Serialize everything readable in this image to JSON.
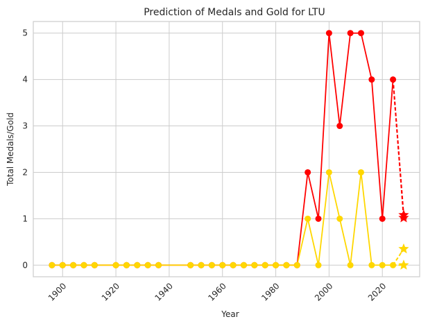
{
  "chart_data": {
    "type": "line",
    "title": "Prediction of Medals and Gold for LTU",
    "xlabel": "Year",
    "ylabel": "Total Medals/Gold",
    "xlim": [
      1889,
      2034
    ],
    "ylim": [
      -0.25,
      5.25
    ],
    "xticks": [
      1900,
      1920,
      1940,
      1960,
      1980,
      2000,
      2020
    ],
    "yticks": [
      0,
      1,
      2,
      3,
      4,
      5
    ],
    "grid": true,
    "series": [
      {
        "color": "#ff0000",
        "marker": "circle",
        "x": [
          1896,
          1900,
          1904,
          1908,
          1912,
          1920,
          1924,
          1928,
          1932,
          1936,
          1948,
          1952,
          1956,
          1960,
          1964,
          1968,
          1972,
          1976,
          1980,
          1984,
          1988,
          1992,
          1996,
          2000,
          2004,
          2008,
          2012,
          2016,
          2020,
          2024
        ],
        "y": [
          0,
          0,
          0,
          0,
          0,
          0,
          0,
          0,
          0,
          0,
          0,
          0,
          0,
          0,
          0,
          0,
          0,
          0,
          0,
          0,
          0,
          2,
          1,
          5,
          3,
          5,
          5,
          4,
          1,
          4
        ]
      },
      {
        "color": "#ffd700",
        "marker": "circle",
        "x": [
          1896,
          1900,
          1904,
          1908,
          1912,
          1920,
          1924,
          1928,
          1932,
          1936,
          1948,
          1952,
          1956,
          1960,
          1964,
          1968,
          1972,
          1976,
          1980,
          1984,
          1988,
          1992,
          1996,
          2000,
          2004,
          2008,
          2012,
          2016,
          2020,
          2024
        ],
        "y": [
          0,
          0,
          0,
          0,
          0,
          0,
          0,
          0,
          0,
          0,
          0,
          0,
          0,
          0,
          0,
          0,
          0,
          0,
          0,
          0,
          0,
          1,
          0,
          2,
          1,
          0,
          2,
          0,
          0,
          0
        ]
      }
    ],
    "predictions": [
      {
        "color": "#ff0000",
        "marker": "star",
        "from": [
          2024,
          4
        ],
        "points": [
          [
            2028,
            1.08
          ],
          [
            2028,
            1.02
          ]
        ]
      },
      {
        "color": "#ffd700",
        "marker": "star",
        "from": [
          2024,
          0
        ],
        "points": [
          [
            2028,
            0.35
          ],
          [
            2028,
            0.0
          ]
        ]
      }
    ]
  }
}
